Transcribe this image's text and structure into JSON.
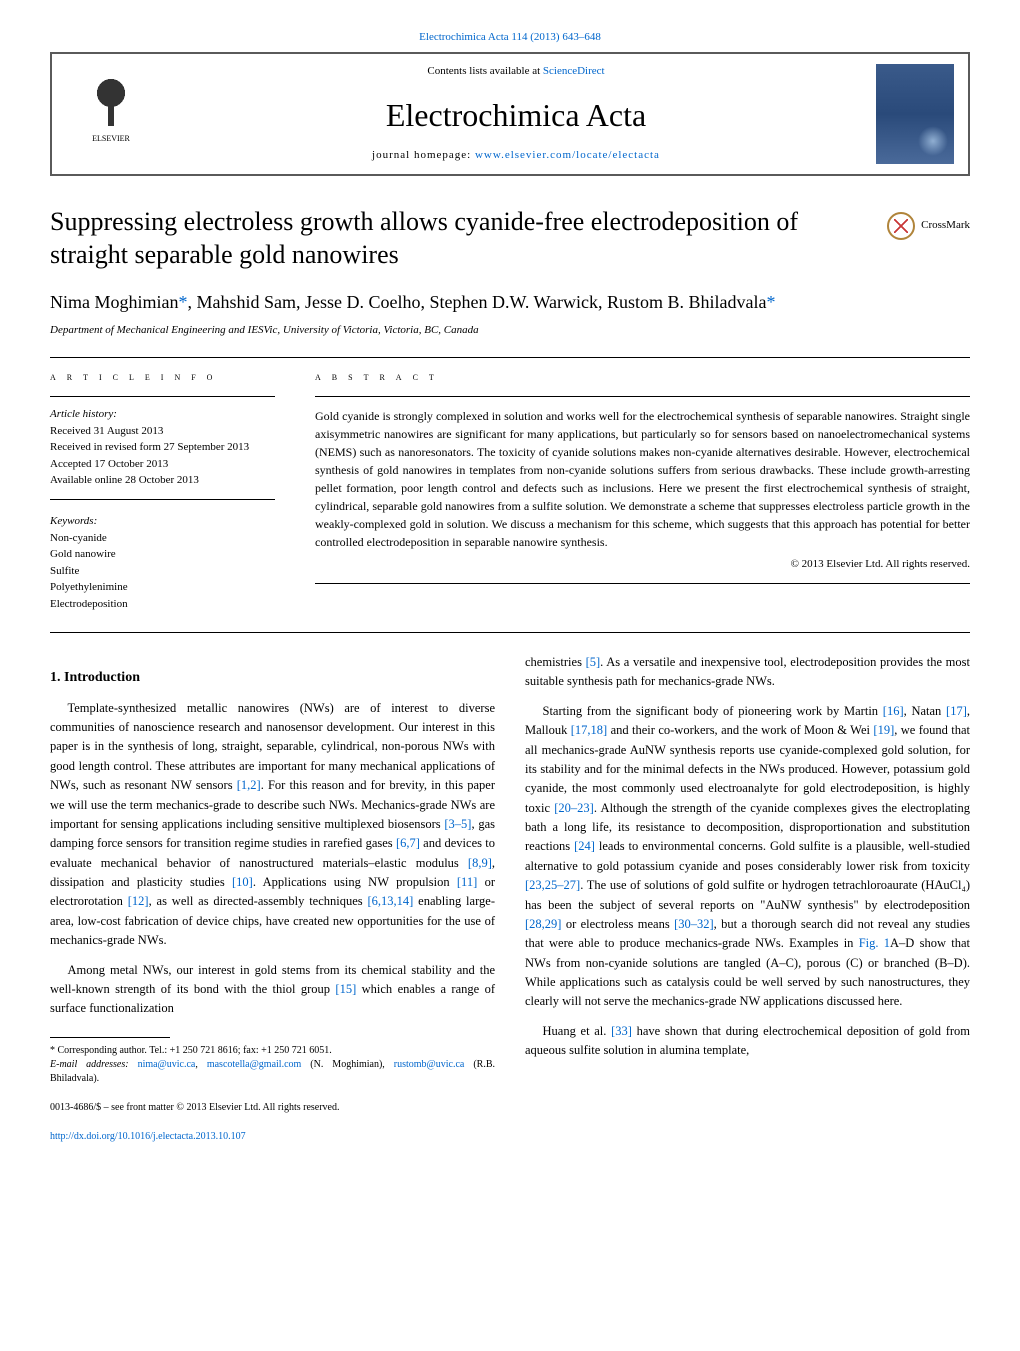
{
  "top_citation": "Electrochimica Acta 114 (2013) 643–648",
  "header": {
    "contents_prefix": "Contents lists available at ",
    "contents_link": "ScienceDirect",
    "journal_name": "Electrochimica Acta",
    "home_prefix": "journal homepage: ",
    "home_link": "www.elsevier.com/locate/electacta",
    "publisher": "ELSEVIER"
  },
  "title": "Suppressing electroless growth allows cyanide-free electrodeposition of straight separable gold nanowires",
  "crossmark": "CrossMark",
  "authors": "Nima Moghimian*, Mahshid Sam, Jesse D. Coelho, Stephen D.W. Warwick, Rustom B. Bhiladvala*",
  "affiliation": "Department of Mechanical Engineering and IESVic, University of Victoria, Victoria, BC, Canada",
  "article_info_label": "A R T I C L E   I N F O",
  "abstract_label": "A B S T R A C T",
  "history": {
    "label": "Article history:",
    "items": [
      "Received 31 August 2013",
      "Received in revised form 27 September 2013",
      "Accepted 17 October 2013",
      "Available online 28 October 2013"
    ]
  },
  "keywords": {
    "label": "Keywords:",
    "items": [
      "Non-cyanide",
      "Gold nanowire",
      "Sulfite",
      "Polyethylenimine",
      "Electrodeposition"
    ]
  },
  "abstract": "Gold cyanide is strongly complexed in solution and works well for the electrochemical synthesis of separable nanowires. Straight single axisymmetric nanowires are significant for many applications, but particularly so for sensors based on nanoelectromechanical systems (NEMS) such as nanoresonators. The toxicity of cyanide solutions makes non-cyanide alternatives desirable. However, electrochemical synthesis of gold nanowires in templates from non-cyanide solutions suffers from serious drawbacks. These include growth-arresting pellet formation, poor length control and defects such as inclusions. Here we present the first electrochemical synthesis of straight, cylindrical, separable gold nanowires from a sulfite solution. We demonstrate a scheme that suppresses electroless particle growth in the weakly-complexed gold in solution. We discuss a mechanism for this scheme, which suggests that this approach has potential for better controlled electrodeposition in separable nanowire synthesis.",
  "copyright": "© 2013 Elsevier Ltd. All rights reserved.",
  "intro_heading": "1.  Introduction",
  "left_col": {
    "p1a": "Template-synthesized metallic nanowires (NWs) are of interest to diverse communities of nanoscience research and nanosensor development. Our interest in this paper is in the synthesis of long, straight, separable, cylindrical, non-porous NWs with good length control. These attributes are important for many mechanical applications of NWs, such as resonant NW sensors ",
    "r1": "[1,2]",
    "p1b": ". For this reason and for brevity, in this paper we will use the term mechanics-grade to describe such NWs. Mechanics-grade NWs are important for sensing applications including sensitive multiplexed biosensors ",
    "r2": "[3–5]",
    "p1c": ", gas damping force sensors for transition regime studies in rarefied gases ",
    "r3": "[6,7]",
    "p1d": " and devices to evaluate mechanical behavior of nanostructured materials–elastic modulus ",
    "r4": "[8,9]",
    "p1e": ", dissipation and plasticity studies ",
    "r5": "[10]",
    "p1f": ". Applications using NW propulsion ",
    "r6": "[11]",
    "p1g": " or electrorotation ",
    "r7": "[12]",
    "p1h": ", as well as directed-assembly techniques ",
    "r8": "[6,13,14]",
    "p1i": " enabling large-area, low-cost fabrication of device chips, have created new opportunities for the use of mechanics-grade NWs.",
    "p2a": "Among metal NWs, our interest in gold stems from its chemical stability and the well-known strength of its bond with the thiol group ",
    "r9": "[15]",
    "p2b": " which enables a range of surface functionalization"
  },
  "right_col": {
    "p1a": "chemistries ",
    "r1": "[5]",
    "p1b": ". As a versatile and inexpensive tool, electrodeposition provides the most suitable synthesis path for mechanics-grade NWs.",
    "p2a": "Starting from the significant body of pioneering work by Martin ",
    "r2": "[16]",
    "p2b": ", Natan ",
    "r3": "[17]",
    "p2c": ", Mallouk ",
    "r4": "[17,18]",
    "p2d": " and their co-workers, and the work of Moon & Wei ",
    "r5": "[19]",
    "p2e": ", we found that all mechanics-grade AuNW synthesis reports use cyanide-complexed gold solution, for its stability and for the minimal defects in the NWs produced. However, potassium gold cyanide, the most commonly used electroanalyte for gold electrodeposition, is highly toxic ",
    "r6": "[20–23]",
    "p2f": ". Although the strength of the cyanide complexes gives the electroplating bath a long life, its resistance to decomposition, disproportionation and substitution reactions ",
    "r7": "[24]",
    "p2g": " leads to environmental concerns. Gold sulfite is a plausible, well-studied alternative to gold potassium cyanide and poses considerably lower risk from toxicity ",
    "r8": "[23,25–27]",
    "p2h": ". The use of solutions of gold sulfite or hydrogen tetrachloroaurate (HAuCl₄) has been the subject of several reports on \"AuNW synthesis\" by electrodeposition ",
    "r9": "[28,29]",
    "p2i": " or electroless means ",
    "r10": "[30–32]",
    "p2j": ", but a thorough search did not reveal any studies that were able to produce mechanics-grade NWs. Examples in ",
    "r11": "Fig. 1",
    "p2k": "A–D show that NWs from non-cyanide solutions are tangled (A–C), porous (C) or branched (B–D). While applications such as catalysis could be well served by such nanostructures, they clearly will not serve the mechanics-grade NW applications discussed here.",
    "p3a": "Huang et al. ",
    "r12": "[33]",
    "p3b": " have shown that during electrochemical deposition of gold from aqueous sulfite solution in alumina template,"
  },
  "footnote": {
    "corr": "* Corresponding author. Tel.: +1 250 721 8616; fax: +1 250 721 6051.",
    "email_label": "E-mail addresses: ",
    "email1": "nima@uvic.ca",
    "sep1": ", ",
    "email2": "mascotella@gmail.com",
    "name1": " (N. Moghimian), ",
    "email3": "rustomb@uvic.ca",
    "name2": " (R.B. Bhiladvala)."
  },
  "bottom": {
    "issn": "0013-4686/$ – see front matter © 2013 Elsevier Ltd. All rights reserved.",
    "doi": "http://dx.doi.org/10.1016/j.electacta.2013.10.107"
  },
  "colors": {
    "link": "#0066cc",
    "text": "#000000",
    "border": "#5a5a5a",
    "crossmark_ring": "#b0843a",
    "crossmark_x": "#c83737",
    "cover_blue": "#3a5a8a"
  }
}
